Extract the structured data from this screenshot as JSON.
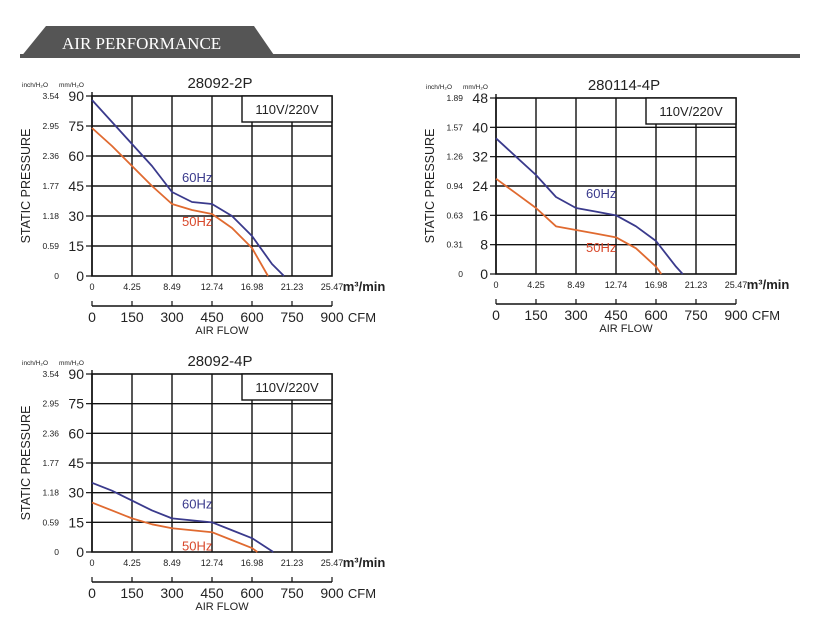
{
  "header": {
    "title": "AIR PERFORMANCE",
    "bg": "#555555",
    "line": "#555555"
  },
  "colors": {
    "series_60": "#3a3a8c",
    "series_50": "#e06a30",
    "label_60": "#3a3a8c",
    "label_50": "#d8482b"
  },
  "chart_data": [
    {
      "type": "line",
      "title": "28092-2P",
      "note": "110V/220V",
      "unit_left": "inch/H₂O",
      "unit_right": "mm/H₂O",
      "ylabel": "STATIC PRESSURE",
      "xlabel": "AIR FLOW",
      "x_unit_top": "m³/min",
      "x_unit_bottom": "CFM",
      "xlim": [
        0,
        900
      ],
      "ylim": [
        0,
        90
      ],
      "y_ticks": [
        0,
        15,
        30,
        45,
        60,
        75,
        90
      ],
      "y_ticks_inch": [
        "0",
        "0.59",
        "1.18",
        "1.77",
        "2.36",
        "2.95",
        "3.54"
      ],
      "x_ticks_cfm": [
        0,
        150,
        300,
        450,
        600,
        750,
        900
      ],
      "x_ticks_m3": [
        "0",
        "4.25",
        "8.49",
        "12.74",
        "16.98",
        "21.23",
        "25.47"
      ],
      "series": [
        {
          "name": "60Hz",
          "x": [
            0,
            75,
            150,
            225,
            300,
            375,
            450,
            525,
            600,
            675,
            720
          ],
          "y": [
            88,
            77,
            66,
            55,
            42,
            37,
            36,
            30,
            20,
            6,
            0
          ]
        },
        {
          "name": "50Hz",
          "x": [
            0,
            75,
            150,
            225,
            300,
            375,
            450,
            525,
            600,
            660
          ],
          "y": [
            74,
            65,
            55,
            45,
            36,
            33,
            31,
            24,
            14,
            0
          ]
        }
      ]
    },
    {
      "type": "line",
      "title": "280114-4P",
      "note": "110V/220V",
      "unit_left": "inch/H₂O",
      "unit_right": "mm/H₂O",
      "ylabel": "STATIC PRESSURE",
      "xlabel": "AIR FLOW",
      "x_unit_top": "m³/min",
      "x_unit_bottom": "CFM",
      "xlim": [
        0,
        900
      ],
      "ylim": [
        0,
        48
      ],
      "y_ticks": [
        0,
        8,
        16,
        24,
        32,
        40,
        48
      ],
      "y_ticks_inch": [
        "0",
        "0.31",
        "0.63",
        "0.94",
        "1.26",
        "1.57",
        "1.89"
      ],
      "x_ticks_cfm": [
        0,
        150,
        300,
        450,
        600,
        750,
        900
      ],
      "x_ticks_m3": [
        "0",
        "4.25",
        "8.49",
        "12.74",
        "16.98",
        "21.23",
        "25.47"
      ],
      "series": [
        {
          "name": "60Hz",
          "x": [
            0,
            75,
            150,
            225,
            300,
            375,
            450,
            525,
            600,
            675,
            700
          ],
          "y": [
            37,
            32,
            27,
            21,
            18,
            17,
            16,
            13,
            9,
            2,
            0
          ]
        },
        {
          "name": "50Hz",
          "x": [
            0,
            75,
            150,
            225,
            300,
            375,
            450,
            525,
            600,
            620
          ],
          "y": [
            26,
            22,
            18,
            13,
            12,
            11,
            10,
            7,
            2,
            0
          ]
        }
      ]
    },
    {
      "type": "line",
      "title": "28092-4P",
      "note": "110V/220V",
      "unit_left": "inch/H₂O",
      "unit_right": "mm/H₂O",
      "ylabel": "STATIC PRESSURE",
      "xlabel": "AIR FLOW",
      "x_unit_top": "m³/min",
      "x_unit_bottom": "CFM",
      "xlim": [
        0,
        900
      ],
      "ylim": [
        0,
        90
      ],
      "y_ticks": [
        0,
        15,
        30,
        45,
        60,
        75,
        90
      ],
      "y_ticks_inch": [
        "0",
        "0.59",
        "1.18",
        "1.77",
        "2.36",
        "2.95",
        "3.54"
      ],
      "x_ticks_cfm": [
        0,
        150,
        300,
        450,
        600,
        750,
        900
      ],
      "x_ticks_m3": [
        "0",
        "4.25",
        "8.49",
        "12.74",
        "16.98",
        "21.23",
        "25.47"
      ],
      "series": [
        {
          "name": "60Hz",
          "x": [
            0,
            75,
            150,
            225,
            300,
            375,
            450,
            525,
            600,
            680
          ],
          "y": [
            35,
            31,
            26,
            21,
            17,
            16,
            15,
            11,
            7,
            0
          ]
        },
        {
          "name": "50Hz",
          "x": [
            0,
            75,
            150,
            225,
            300,
            375,
            450,
            525,
            600,
            620
          ],
          "y": [
            25,
            21,
            17,
            14,
            12,
            11,
            10,
            6,
            2,
            0
          ]
        }
      ]
    }
  ]
}
